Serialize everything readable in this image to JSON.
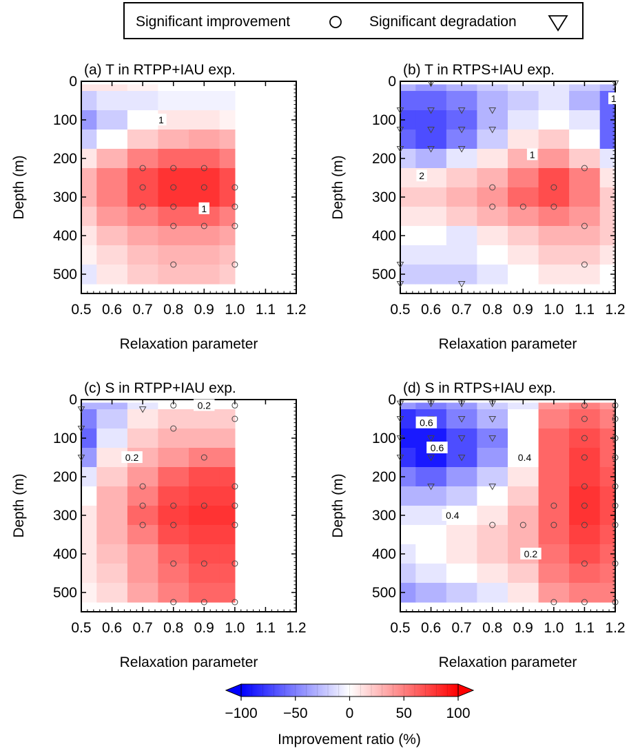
{
  "legend": {
    "improvement_label": "Significant improvement",
    "degradation_label": "Significant degradation",
    "improvement_symbol": "circle",
    "degradation_symbol": "down-triangle",
    "placement": "top-center"
  },
  "chart_data": [
    {
      "type": "heatmap",
      "id": "a",
      "title": "(a) T in RTPP+IAU exp.",
      "xlabel": "Relaxation parameter",
      "ylabel": "Depth (m)",
      "xlim": [
        0.5,
        1.2
      ],
      "ylim": [
        550,
        0
      ],
      "x_ticks": [
        "0.5",
        "0.6",
        "0.7",
        "0.8",
        "0.9",
        "1.0",
        "1.1",
        "1.2"
      ],
      "y_ticks": [
        "0",
        "100",
        "200",
        "300",
        "400",
        "500"
      ],
      "x": [
        0.5,
        0.6,
        0.7,
        0.8,
        0.9,
        1.0
      ],
      "depth": [
        0,
        50,
        100,
        150,
        200,
        250,
        300,
        350,
        400,
        450,
        500
      ],
      "values": [
        [
          10,
          10,
          5,
          0,
          0,
          0
        ],
        [
          -20,
          -10,
          -10,
          -5,
          -5,
          -5
        ],
        [
          -40,
          -20,
          0,
          10,
          10,
          5
        ],
        [
          -20,
          0,
          20,
          30,
          35,
          30
        ],
        [
          10,
          30,
          50,
          60,
          60,
          50
        ],
        [
          30,
          50,
          70,
          80,
          80,
          70
        ],
        [
          30,
          50,
          70,
          80,
          80,
          70
        ],
        [
          20,
          40,
          50,
          60,
          60,
          50
        ],
        [
          10,
          25,
          35,
          40,
          40,
          35
        ],
        [
          5,
          15,
          25,
          30,
          30,
          25
        ],
        [
          -10,
          10,
          20,
          25,
          25,
          20
        ]
      ],
      "contour_labels": [
        {
          "text": "1",
          "x": 0.76,
          "depth": 100
        },
        {
          "text": "1",
          "x": 0.9,
          "depth": 330
        }
      ],
      "improvement_points": [
        [
          0.7,
          225
        ],
        [
          0.8,
          225
        ],
        [
          0.9,
          225
        ],
        [
          0.7,
          275
        ],
        [
          0.8,
          275
        ],
        [
          0.9,
          275
        ],
        [
          1.0,
          275
        ],
        [
          0.7,
          325
        ],
        [
          0.8,
          325
        ],
        [
          0.9,
          325
        ],
        [
          1.0,
          325
        ],
        [
          0.8,
          375
        ],
        [
          0.9,
          375
        ],
        [
          1.0,
          375
        ],
        [
          0.8,
          475
        ],
        [
          1.0,
          475
        ]
      ],
      "degradation_points": []
    },
    {
      "type": "heatmap",
      "id": "b",
      "title": "(b) T in RTPS+IAU exp.",
      "xlabel": "Relaxation parameter",
      "ylabel": "Depth (m)",
      "xlim": [
        0.5,
        1.2
      ],
      "ylim": [
        550,
        0
      ],
      "x_ticks": [
        "0.5",
        "0.6",
        "0.7",
        "0.8",
        "0.9",
        "1.0",
        "1.1",
        "1.2"
      ],
      "y_ticks": [
        "0",
        "100",
        "200",
        "300",
        "400",
        "500"
      ],
      "x": [
        0.5,
        0.6,
        0.7,
        0.8,
        0.9,
        1.0,
        1.1,
        1.2
      ],
      "depth": [
        0,
        50,
        100,
        150,
        200,
        250,
        300,
        350,
        400,
        450,
        500
      ],
      "values": [
        [
          -30,
          -40,
          -30,
          -20,
          -10,
          -10,
          -20,
          -30
        ],
        [
          -60,
          -60,
          -50,
          -30,
          -20,
          -10,
          -30,
          -60
        ],
        [
          -70,
          -70,
          -60,
          -30,
          -10,
          0,
          -10,
          -60
        ],
        [
          -60,
          -70,
          -50,
          -20,
          10,
          20,
          0,
          -60
        ],
        [
          -20,
          -30,
          -10,
          10,
          30,
          40,
          20,
          -10
        ],
        [
          10,
          10,
          20,
          30,
          50,
          70,
          50,
          10
        ],
        [
          20,
          20,
          30,
          40,
          60,
          70,
          50,
          20
        ],
        [
          10,
          10,
          20,
          30,
          40,
          50,
          40,
          20
        ],
        [
          0,
          0,
          -10,
          10,
          20,
          30,
          30,
          20
        ],
        [
          -10,
          -10,
          -10,
          0,
          10,
          20,
          20,
          10
        ],
        [
          -20,
          -20,
          -20,
          -10,
          0,
          10,
          10,
          0
        ]
      ],
      "contour_labels": [
        {
          "text": "1",
          "x": 1.195,
          "depth": 45
        },
        {
          "text": "1",
          "x": 0.93,
          "depth": 190
        },
        {
          "text": "2",
          "x": 0.57,
          "depth": 245
        }
      ],
      "improvement_points": [
        [
          1.1,
          225
        ],
        [
          0.8,
          275
        ],
        [
          1.0,
          275
        ],
        [
          0.8,
          325
        ],
        [
          0.9,
          325
        ],
        [
          1.0,
          325
        ],
        [
          1.1,
          375
        ],
        [
          1.1,
          475
        ]
      ],
      "degradation_points": [
        [
          0.6,
          5
        ],
        [
          1.2,
          5
        ],
        [
          0.5,
          75
        ],
        [
          0.6,
          75
        ],
        [
          0.7,
          75
        ],
        [
          0.8,
          75
        ],
        [
          0.5,
          125
        ],
        [
          0.6,
          125
        ],
        [
          0.7,
          125
        ],
        [
          0.8,
          125
        ],
        [
          0.5,
          175
        ],
        [
          0.6,
          175
        ],
        [
          0.7,
          175
        ],
        [
          0.5,
          475
        ],
        [
          0.5,
          525
        ],
        [
          0.7,
          525
        ]
      ]
    },
    {
      "type": "heatmap",
      "id": "c",
      "title": "(c) S in RTPP+IAU exp.",
      "xlabel": "Relaxation parameter",
      "ylabel": "Depth (m)",
      "xlim": [
        0.5,
        1.2
      ],
      "ylim": [
        550,
        0
      ],
      "x_ticks": [
        "0.5",
        "0.6",
        "0.7",
        "0.8",
        "0.9",
        "1.0",
        "1.1",
        "1.2"
      ],
      "y_ticks": [
        "0",
        "100",
        "200",
        "300",
        "400",
        "500"
      ],
      "x": [
        0.5,
        0.6,
        0.7,
        0.8,
        0.9,
        1.0
      ],
      "depth": [
        0,
        50,
        100,
        150,
        200,
        250,
        300,
        350,
        400,
        450,
        500
      ],
      "values": [
        [
          -30,
          -30,
          -10,
          0,
          0,
          0
        ],
        [
          -50,
          -20,
          10,
          20,
          20,
          20
        ],
        [
          -60,
          -10,
          20,
          30,
          30,
          30
        ],
        [
          -40,
          10,
          30,
          40,
          50,
          50
        ],
        [
          -10,
          20,
          40,
          60,
          70,
          70
        ],
        [
          0,
          30,
          50,
          70,
          75,
          75
        ],
        [
          10,
          30,
          60,
          75,
          80,
          80
        ],
        [
          10,
          30,
          50,
          70,
          75,
          75
        ],
        [
          10,
          25,
          40,
          60,
          70,
          70
        ],
        [
          10,
          20,
          40,
          55,
          65,
          65
        ],
        [
          5,
          15,
          35,
          50,
          60,
          60
        ]
      ],
      "contour_labels": [
        {
          "text": "0.2",
          "x": 0.9,
          "depth": 15
        },
        {
          "text": "0.2",
          "x": 0.665,
          "depth": 150
        }
      ],
      "improvement_points": [
        [
          0.8,
          15
        ],
        [
          1.0,
          15
        ],
        [
          1.0,
          50
        ],
        [
          0.8,
          75
        ],
        [
          0.9,
          150
        ],
        [
          0.7,
          225
        ],
        [
          1.0,
          225
        ],
        [
          0.7,
          275
        ],
        [
          0.8,
          275
        ],
        [
          0.9,
          275
        ],
        [
          1.0,
          275
        ],
        [
          0.7,
          325
        ],
        [
          0.8,
          325
        ],
        [
          1.0,
          325
        ],
        [
          0.8,
          425
        ],
        [
          0.9,
          425
        ],
        [
          1.0,
          425
        ],
        [
          0.8,
          525
        ],
        [
          0.9,
          525
        ],
        [
          1.0,
          525
        ]
      ],
      "degradation_points": [
        [
          0.5,
          25
        ],
        [
          0.7,
          25
        ],
        [
          0.5,
          75
        ],
        [
          0.5,
          150
        ]
      ]
    },
    {
      "type": "heatmap",
      "id": "d",
      "title": "(d) S in RTPS+IAU exp.",
      "xlabel": "Relaxation parameter",
      "ylabel": "Depth (m)",
      "xlim": [
        0.5,
        1.2
      ],
      "ylim": [
        550,
        0
      ],
      "x_ticks": [
        "0.5",
        "0.6",
        "0.7",
        "0.8",
        "0.9",
        "1.0",
        "1.1",
        "1.2"
      ],
      "y_ticks": [
        "0",
        "100",
        "200",
        "300",
        "400",
        "500"
      ],
      "x": [
        0.5,
        0.6,
        0.7,
        0.8,
        0.9,
        1.0,
        1.1,
        1.2
      ],
      "depth": [
        0,
        50,
        100,
        150,
        200,
        250,
        300,
        350,
        400,
        450,
        500
      ],
      "values": [
        [
          -40,
          -50,
          -40,
          -20,
          -10,
          40,
          50,
          40
        ],
        [
          -80,
          -70,
          -50,
          -30,
          0,
          50,
          60,
          50
        ],
        [
          -90,
          -90,
          -70,
          -50,
          0,
          60,
          70,
          60
        ],
        [
          -80,
          -90,
          -70,
          -40,
          0,
          60,
          75,
          60
        ],
        [
          -50,
          -60,
          -40,
          -20,
          10,
          60,
          75,
          65
        ],
        [
          -30,
          -30,
          -20,
          0,
          20,
          60,
          80,
          70
        ],
        [
          -10,
          -10,
          0,
          10,
          30,
          60,
          80,
          70
        ],
        [
          0,
          0,
          10,
          20,
          30,
          60,
          75,
          65
        ],
        [
          -10,
          0,
          10,
          20,
          30,
          55,
          70,
          60
        ],
        [
          -20,
          -10,
          0,
          10,
          20,
          50,
          60,
          55
        ],
        [
          -40,
          -30,
          -20,
          -10,
          10,
          40,
          50,
          50
        ]
      ],
      "contour_labels": [
        {
          "text": "0.6",
          "x": 0.585,
          "depth": 60
        },
        {
          "text": "0.6",
          "x": 0.62,
          "depth": 125
        },
        {
          "text": "0.4",
          "x": 0.905,
          "depth": 150
        },
        {
          "text": "0.4",
          "x": 0.67,
          "depth": 300
        },
        {
          "text": "0.2",
          "x": 0.925,
          "depth": 400
        }
      ],
      "improvement_points": [
        [
          1.1,
          15
        ],
        [
          1.2,
          15
        ],
        [
          1.1,
          50
        ],
        [
          1.2,
          50
        ],
        [
          1.1,
          100
        ],
        [
          1.2,
          100
        ],
        [
          1.1,
          150
        ],
        [
          1.2,
          150
        ],
        [
          1.1,
          225
        ],
        [
          1.2,
          225
        ],
        [
          1.0,
          275
        ],
        [
          1.1,
          275
        ],
        [
          1.2,
          275
        ],
        [
          0.8,
          325
        ],
        [
          0.9,
          325
        ],
        [
          1.0,
          325
        ],
        [
          1.1,
          325
        ],
        [
          1.2,
          325
        ],
        [
          1.1,
          425
        ],
        [
          1.2,
          425
        ],
        [
          1.0,
          525
        ],
        [
          1.1,
          525
        ],
        [
          1.2,
          525
        ]
      ],
      "degradation_points": [
        [
          0.5,
          10
        ],
        [
          0.6,
          10
        ],
        [
          0.7,
          10
        ],
        [
          0.8,
          10
        ],
        [
          0.5,
          50
        ],
        [
          0.6,
          50
        ],
        [
          0.7,
          50
        ],
        [
          0.8,
          50
        ],
        [
          0.5,
          100
        ],
        [
          0.6,
          100
        ],
        [
          0.7,
          100
        ],
        [
          0.8,
          100
        ],
        [
          0.5,
          150
        ],
        [
          0.6,
          150
        ],
        [
          0.7,
          150
        ],
        [
          0.6,
          225
        ],
        [
          0.8,
          225
        ]
      ]
    }
  ],
  "colorbar": {
    "label": "Improvement ratio (%)",
    "range": [
      -100,
      100
    ],
    "ticks": [
      "−100",
      "−50",
      "0",
      "50",
      "100"
    ],
    "tick_values": [
      -100,
      -50,
      0,
      50,
      100
    ],
    "low_color": "#0000ff",
    "mid_color": "#ffffff",
    "high_color": "#ff0000"
  }
}
